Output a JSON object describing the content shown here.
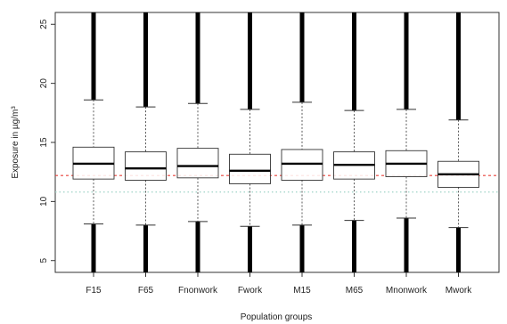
{
  "chart_data": {
    "type": "box",
    "title": "",
    "xlabel": "Population groups",
    "ylabel": "Exposure in µg/m³",
    "ylim": [
      4,
      26
    ],
    "yticks": [
      5,
      10,
      15,
      20,
      25
    ],
    "grid": false,
    "legend": "none",
    "categories": [
      "F15",
      "F65",
      "Fnonwork",
      "Fwork",
      "M15",
      "M65",
      "Mnonwork",
      "Mwork"
    ],
    "boxes": [
      {
        "category": "F15",
        "q1": 11.9,
        "median": 13.2,
        "q3": 14.6,
        "whisker_low": 8.1,
        "whisker_high": 18.6,
        "outliers_low": [
          4,
          8.1
        ],
        "outliers_high": [
          18.6,
          26
        ]
      },
      {
        "category": "F65",
        "q1": 11.8,
        "median": 12.8,
        "q3": 14.2,
        "whisker_low": 8.0,
        "whisker_high": 18.0,
        "outliers_low": [
          4,
          8.0
        ],
        "outliers_high": [
          18.0,
          26
        ]
      },
      {
        "category": "Fnonwork",
        "q1": 12.0,
        "median": 13.0,
        "q3": 14.5,
        "whisker_low": 8.3,
        "whisker_high": 18.3,
        "outliers_low": [
          4,
          8.3
        ],
        "outliers_high": [
          18.3,
          26
        ]
      },
      {
        "category": "Fwork",
        "q1": 11.5,
        "median": 12.6,
        "q3": 14.0,
        "whisker_low": 7.9,
        "whisker_high": 17.8,
        "outliers_low": [
          4,
          7.9
        ],
        "outliers_high": [
          17.8,
          26
        ]
      },
      {
        "category": "M15",
        "q1": 11.8,
        "median": 13.2,
        "q3": 14.4,
        "whisker_low": 8.0,
        "whisker_high": 18.4,
        "outliers_low": [
          4,
          8.0
        ],
        "outliers_high": [
          18.4,
          26
        ]
      },
      {
        "category": "M65",
        "q1": 11.9,
        "median": 13.1,
        "q3": 14.2,
        "whisker_low": 8.4,
        "whisker_high": 17.7,
        "outliers_low": [
          4,
          8.4
        ],
        "outliers_high": [
          17.7,
          26
        ]
      },
      {
        "category": "Mnonwork",
        "q1": 12.1,
        "median": 13.2,
        "q3": 14.3,
        "whisker_low": 8.6,
        "whisker_high": 17.8,
        "outliers_low": [
          4,
          8.6
        ],
        "outliers_high": [
          17.8,
          26
        ]
      },
      {
        "category": "Mwork",
        "q1": 11.2,
        "median": 12.3,
        "q3": 13.4,
        "whisker_low": 7.8,
        "whisker_high": 16.9,
        "outliers_low": [
          4,
          7.8
        ],
        "outliers_high": [
          16.9,
          26
        ]
      }
    ],
    "reference_lines": [
      {
        "y": 12.2,
        "color": "#e8403a",
        "style": "dashed"
      },
      {
        "y": 10.8,
        "color": "#9fd3c7",
        "style": "dotted"
      }
    ],
    "colors": {
      "box_fill": "#ffffff",
      "box_stroke": "#333333",
      "outlier": "#000000",
      "axis": "#333333"
    }
  }
}
